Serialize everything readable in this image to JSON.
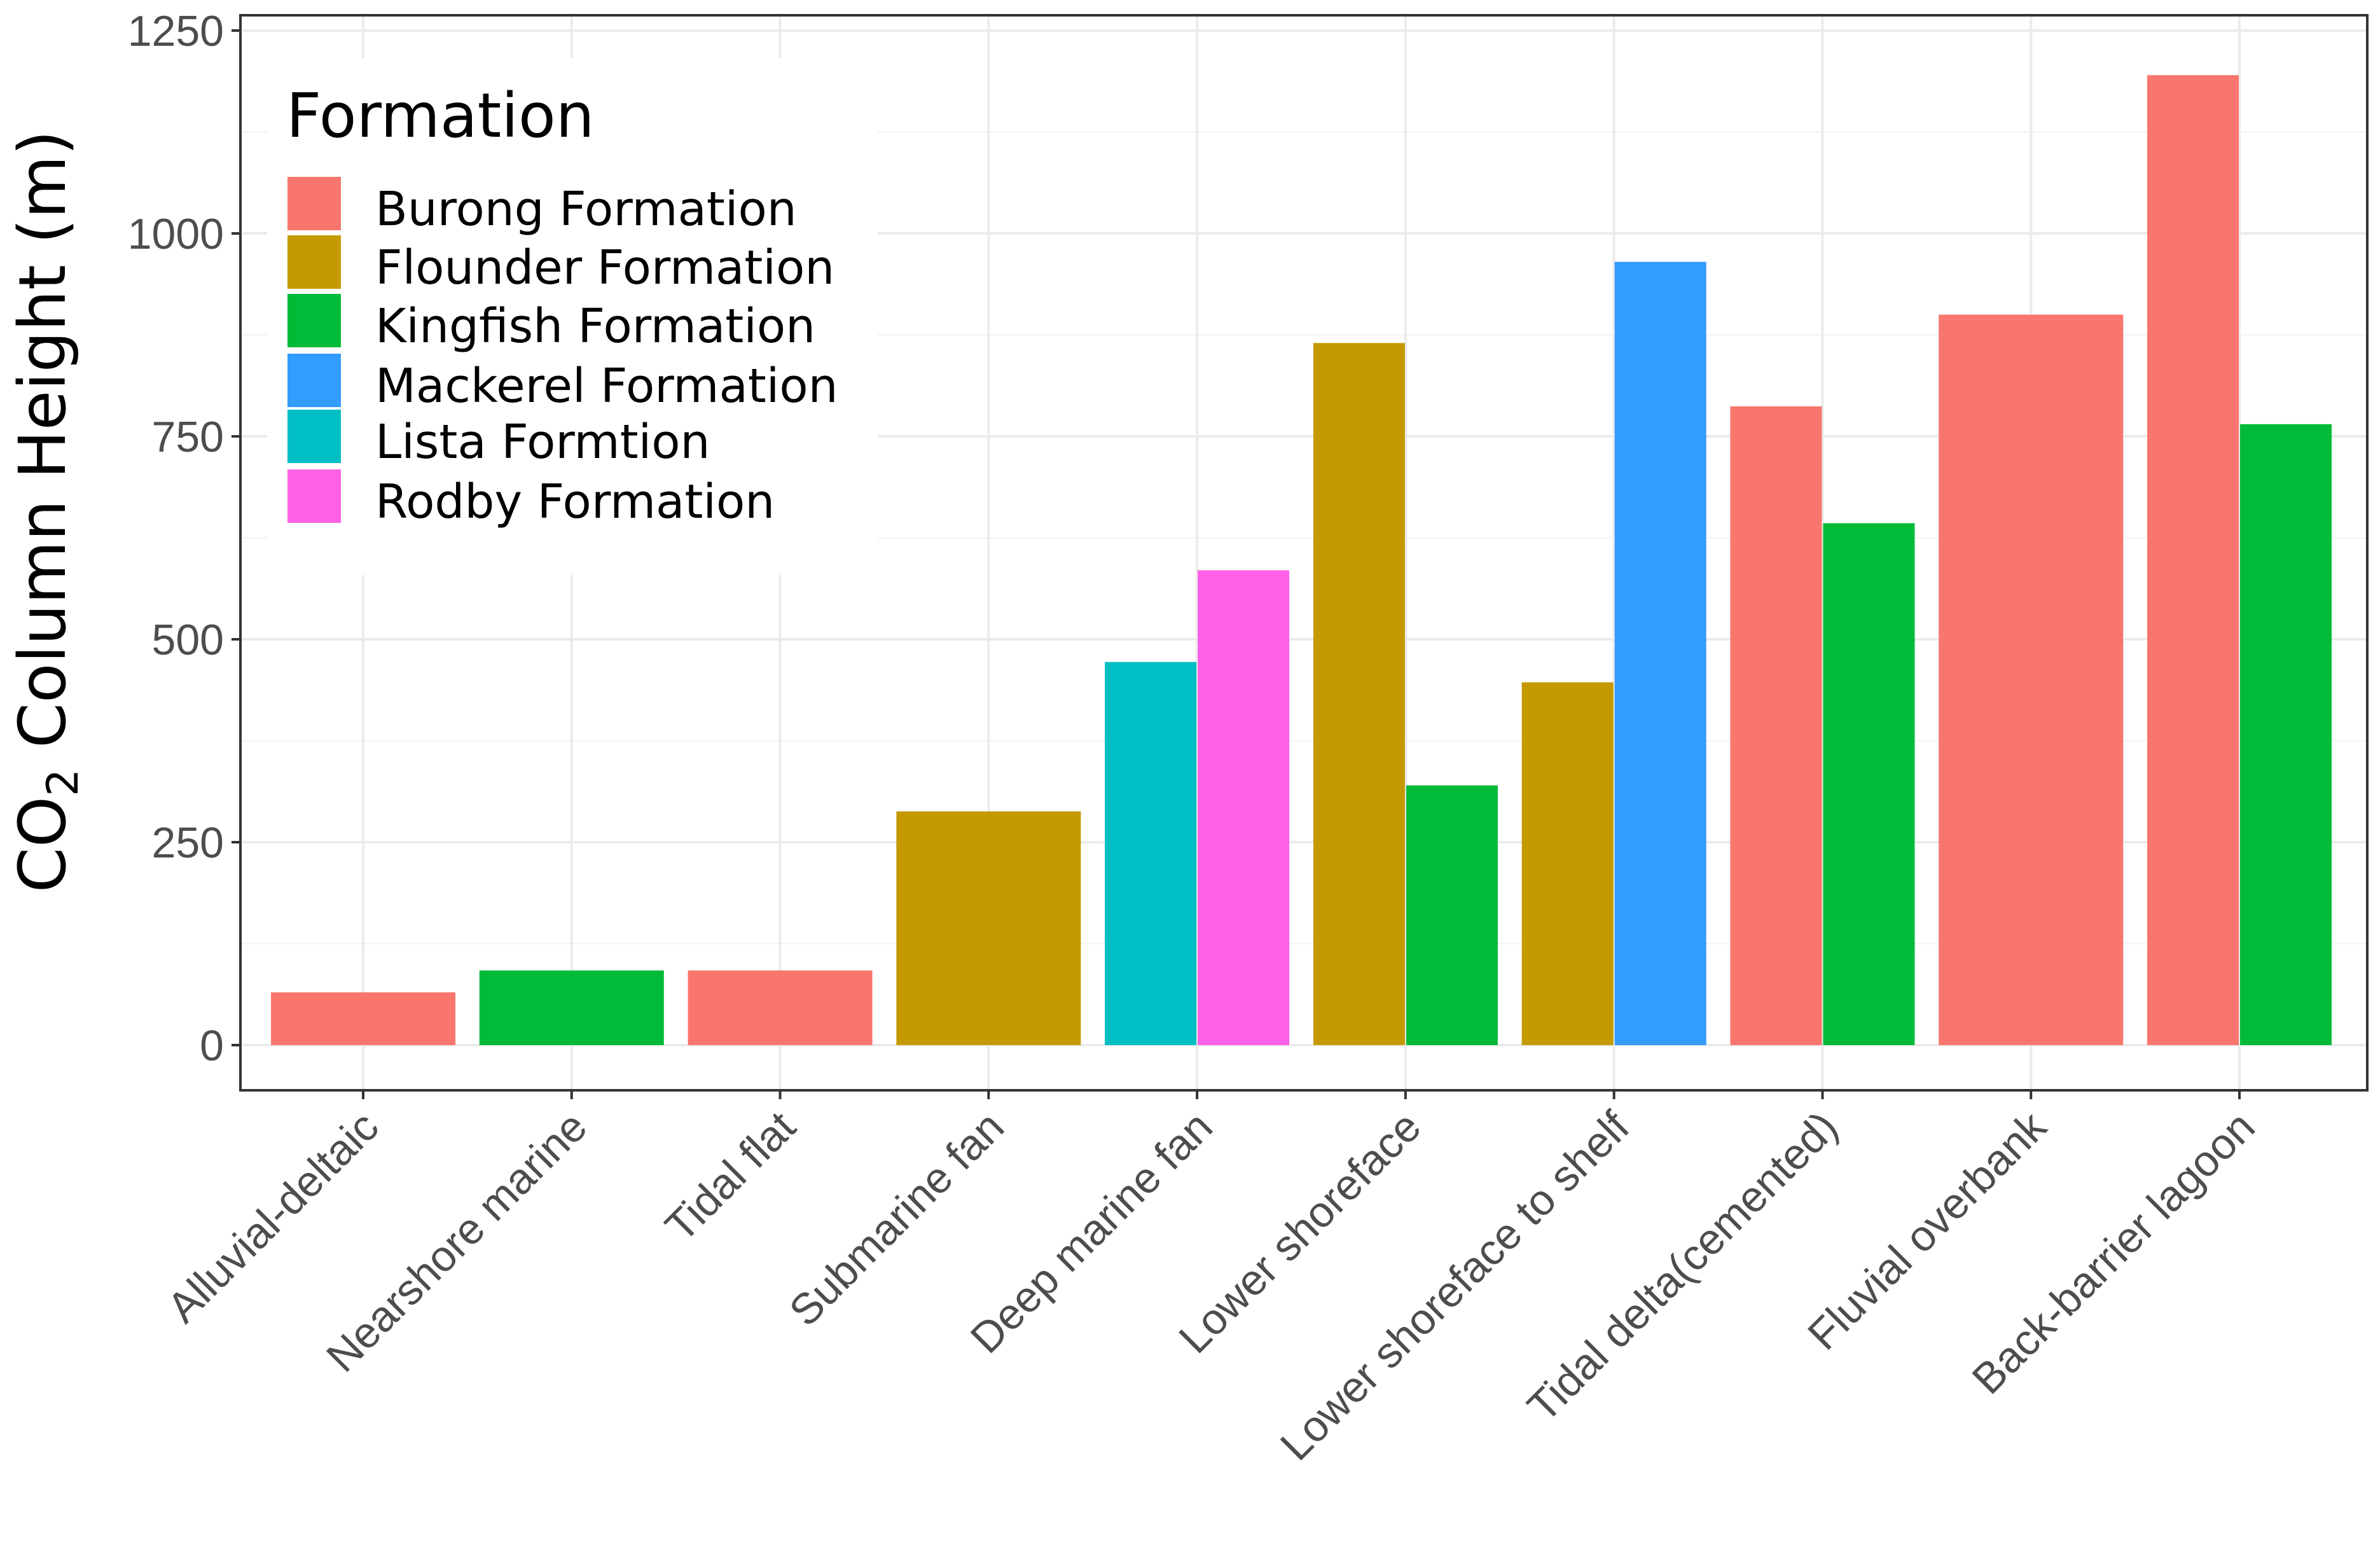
{
  "chart_data": {
    "type": "bar",
    "ylabel_main": "CO",
    "ylabel_sub": "2",
    "ylabel_rest": " Column Height (m)",
    "xlabel": "",
    "ylim": [
      -60,
      1250
    ],
    "yticks": [
      0,
      250,
      500,
      750,
      1000,
      1250
    ],
    "ytick_labels": [
      "0",
      "250",
      "500",
      "750",
      "1000",
      "1250"
    ],
    "grid": true,
    "legend": {
      "title": "Formation",
      "position": "top-left",
      "entries": [
        {
          "name": "Burong Formation",
          "color": "#F8766D"
        },
        {
          "name": "Flounder Formation",
          "color": "#C49A00"
        },
        {
          "name": "Kingfish Formation",
          "color": "#00BA38"
        },
        {
          "name": "Mackerel Formation",
          "color": "#339CFF"
        },
        {
          "name": "Lista Formtion",
          "color": "#00BFC4"
        },
        {
          "name": "Rodby Formation",
          "color": "#FF61E6"
        }
      ]
    },
    "categories": [
      "Alluvial-deltaic",
      "Nearshore marine",
      "Tidal flat",
      "Submarine fan",
      "Deep marine fan",
      "Lower shoreface",
      "Lower shoreface to shelf",
      "Tidal delta(cemented)",
      "Fluvial overbank",
      "Back-barrier lagoon"
    ],
    "bars": [
      [
        {
          "formation": "Burong Formation",
          "value": 65
        }
      ],
      [
        {
          "formation": "Kingfish Formation",
          "value": 92
        }
      ],
      [
        {
          "formation": "Burong Formation",
          "value": 92
        }
      ],
      [
        {
          "formation": "Flounder Formation",
          "value": 288
        }
      ],
      [
        {
          "formation": "Lista Formtion",
          "value": 472
        },
        {
          "formation": "Rodby Formation",
          "value": 585
        }
      ],
      [
        {
          "formation": "Flounder Formation",
          "value": 865
        },
        {
          "formation": "Kingfish Formation",
          "value": 320
        }
      ],
      [
        {
          "formation": "Flounder Formation",
          "value": 447
        },
        {
          "formation": "Mackerel Formation",
          "value": 965
        }
      ],
      [
        {
          "formation": "Burong Formation",
          "value": 787
        },
        {
          "formation": "Kingfish Formation",
          "value": 643
        }
      ],
      [
        {
          "formation": "Burong Formation",
          "value": 900
        }
      ],
      [
        {
          "formation": "Burong Formation",
          "value": 1195
        },
        {
          "formation": "Kingfish Formation",
          "value": 765
        }
      ]
    ]
  }
}
